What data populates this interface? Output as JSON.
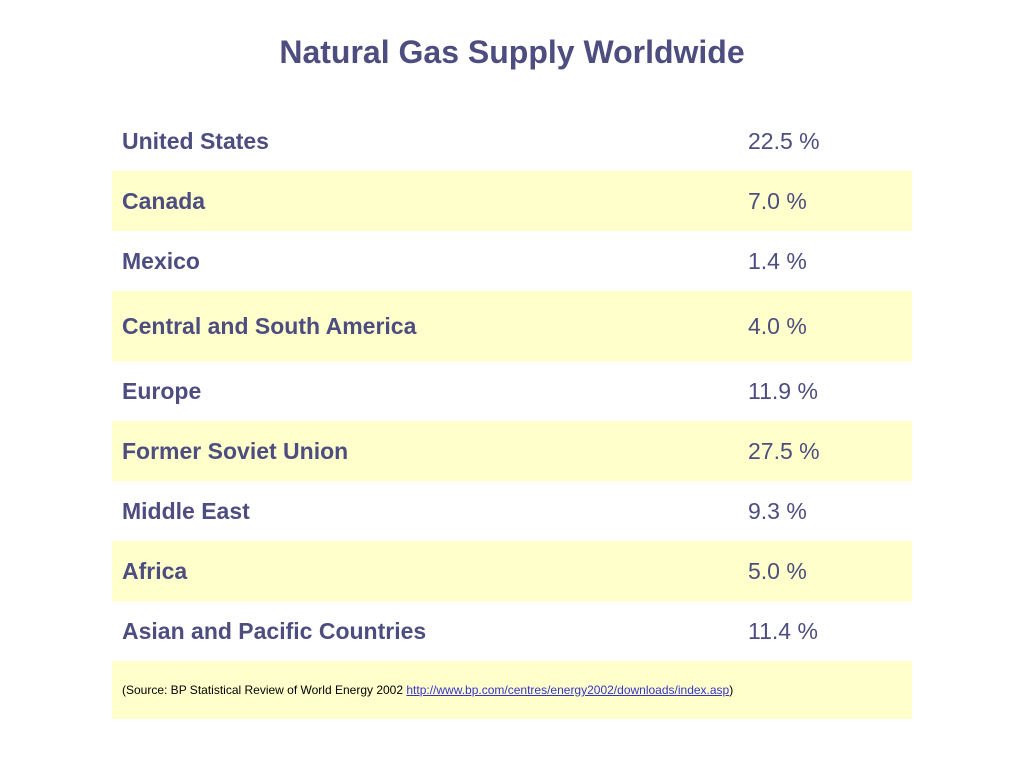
{
  "title": "Natural Gas Supply Worldwide",
  "rows": [
    {
      "country": "United States",
      "value": "22.5 %"
    },
    {
      "country": "Canada",
      "value": "7.0 %"
    },
    {
      "country": "Mexico",
      "value": "1.4 %"
    },
    {
      "country": "Central and South America",
      "value": "4.0 %"
    },
    {
      "country": "Europe",
      "value": "11.9 %"
    },
    {
      "country": "Former Soviet Union",
      "value": "27.5 %"
    },
    {
      "country": "Middle East",
      "value": "9.3 %"
    },
    {
      "country": "Africa",
      "value": "5.0 %"
    },
    {
      "country": "Asian and Pacific Countries",
      "value": "11.4 %"
    }
  ],
  "source": {
    "prefix": "(Source: BP Statistical Review of World Energy 2002 ",
    "link_text": "http://www.bp.com/centres/energy2002/downloads/index.asp",
    "suffix": ")"
  }
}
